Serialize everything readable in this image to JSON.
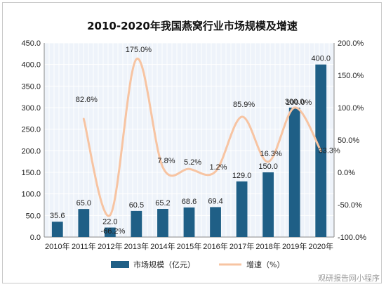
{
  "chart_data": {
    "type": "bar",
    "title": "2010-2020年我国燕窝行业市场规模及增速",
    "categories": [
      "2010年",
      "2011年",
      "2012年",
      "2013年",
      "2014年",
      "2015年",
      "2016年",
      "2017年",
      "2018年",
      "2019年",
      "2020年"
    ],
    "series": [
      {
        "name": "市场规模（亿元）",
        "type": "bar",
        "axis": "left",
        "color": "#1f5f86",
        "values": [
          35.6,
          65.0,
          22.0,
          60.5,
          65.2,
          68.6,
          69.4,
          129.0,
          150.0,
          300.0,
          400.0
        ],
        "labels": [
          "35.6",
          "65.0",
          "22.0",
          "60.5",
          "65.2",
          "68.6",
          "69.4",
          "129.0",
          "150.0",
          "300.0",
          "400.0"
        ]
      },
      {
        "name": "增速（%）",
        "type": "line",
        "axis": "right",
        "color": "#f7c4a2",
        "smooth": true,
        "values": [
          null,
          82.6,
          -66.2,
          175.0,
          7.8,
          5.2,
          1.2,
          85.9,
          16.3,
          100.0,
          33.3
        ],
        "labels": [
          "",
          "82.6%",
          "-66.2%",
          "175.0%",
          "7.8%",
          "5.2%",
          "1.2%",
          "85.9%",
          "16.3%",
          "100.0%",
          "33.3%"
        ]
      }
    ],
    "y_left": {
      "min": 0,
      "max": 450,
      "step": 50,
      "ticks": [
        "0.0",
        "50.0",
        "100.0",
        "150.0",
        "200.0",
        "250.0",
        "300.0",
        "350.0",
        "400.0",
        "450.0"
      ]
    },
    "y_right": {
      "min": -100,
      "max": 200,
      "step": 50,
      "ticks": [
        "-100.0%",
        "-50.0%",
        "0.0%",
        "50.0%",
        "100.0%",
        "150.0%",
        "200.0%"
      ]
    },
    "grid": true,
    "legend_position": "bottom",
    "colors": {
      "bar": "#1f5f86",
      "line": "#f7c4a2",
      "plot_bg": "#eef3fa",
      "grid": "#ffffff"
    }
  },
  "watermark": "观研报告网小程序"
}
